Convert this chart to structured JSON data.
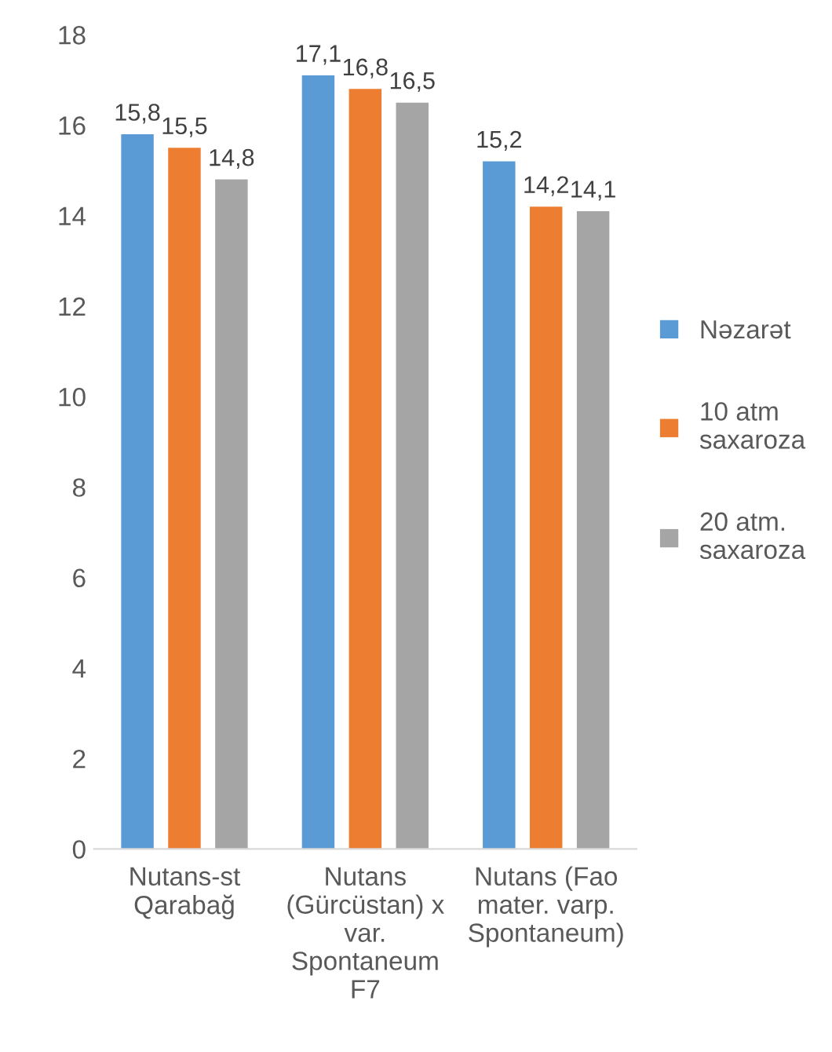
{
  "chart_data": {
    "type": "bar",
    "categories": [
      "Nutans-st\nQarabağ",
      "Nutans\n(Gürcüstan) x\nvar.\nSpontaneum\nF7",
      "Nutans (Fao\nmater. varp.\nSpontaneum)"
    ],
    "series": [
      {
        "name": "Nəzarət",
        "color": "#5b9bd5",
        "values": [
          15.8,
          17.1,
          15.2
        ],
        "value_labels": [
          "15,8",
          "17,1",
          "15,2"
        ]
      },
      {
        "name": "10 atm\nsaxaroza",
        "color": "#ed7d31",
        "values": [
          15.5,
          16.8,
          14.2
        ],
        "value_labels": [
          "15,5",
          "16,8",
          "14,2"
        ]
      },
      {
        "name": "20 atm.\nsaxaroza",
        "color": "#a5a5a5",
        "values": [
          14.8,
          16.5,
          14.1
        ],
        "value_labels": [
          "14,8",
          "16,5",
          "14,1"
        ]
      }
    ],
    "ylim": [
      0,
      18
    ],
    "yticks": [
      0,
      2,
      4,
      6,
      8,
      10,
      12,
      14,
      16,
      18
    ],
    "grid": false,
    "legend": "right"
  }
}
